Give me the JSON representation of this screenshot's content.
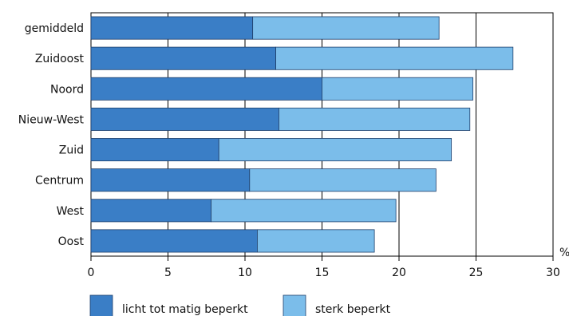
{
  "chart_data": {
    "type": "bar",
    "orientation": "horizontal",
    "stacked": true,
    "categories": [
      "gemiddeld",
      "Zuidoost",
      "Noord",
      "Nieuw-West",
      "Zuid",
      "Centrum",
      "West",
      "Oost"
    ],
    "series": [
      {
        "name": "licht tot matig beperkt",
        "values": [
          10.5,
          12.0,
          15.0,
          12.2,
          8.3,
          10.3,
          7.8,
          10.8
        ],
        "color": "#3a7ec6"
      },
      {
        "name": "sterk beperkt",
        "values": [
          12.1,
          15.4,
          9.8,
          12.4,
          15.1,
          12.1,
          12.0,
          7.6
        ],
        "color": "#7bbdea"
      }
    ],
    "xlim": [
      0,
      30
    ],
    "xticks": [
      "0",
      "5",
      "10",
      "15",
      "20",
      "25",
      "30"
    ],
    "unit": "%",
    "grid": "vertical lines at major ticks",
    "legend_position": "bottom"
  }
}
